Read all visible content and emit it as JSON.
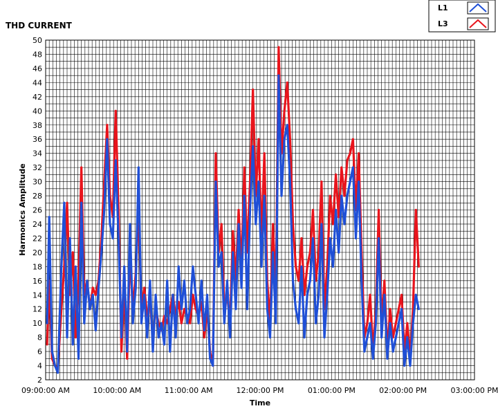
{
  "chart_data": {
    "type": "line",
    "title": "THD CURRENT",
    "xlabel": "Time",
    "ylabel": "Harmonics Amplitude",
    "ylim": [
      2,
      50
    ],
    "y_ticks": [
      2,
      4,
      6,
      8,
      10,
      12,
      14,
      16,
      18,
      20,
      22,
      24,
      26,
      28,
      30,
      32,
      34,
      36,
      38,
      40,
      42,
      44,
      46,
      48,
      50
    ],
    "x_ticks": [
      "09:00:00 AM",
      "10:00:00 AM",
      "11:00:00 AM",
      "12:00:00 PM",
      "01:00:00 PM",
      "02:00:00 PM",
      "03:00:00 PM"
    ],
    "x_range_hours": [
      9,
      15
    ],
    "grid": true,
    "legend": "top-right",
    "colors": {
      "L1": "#1f4fd6",
      "L3": "#e8141c",
      "grid": "#000000"
    },
    "series": [
      {
        "name": "L3",
        "x": [
          9.02,
          9.05,
          9.09,
          9.13,
          9.17,
          9.22,
          9.26,
          9.3,
          9.34,
          9.38,
          9.42,
          9.46,
          9.5,
          9.54,
          9.58,
          9.62,
          9.66,
          9.7,
          9.74,
          9.78,
          9.82,
          9.86,
          9.9,
          9.94,
          9.98,
          10.02,
          10.06,
          10.1,
          10.14,
          10.18,
          10.22,
          10.26,
          10.3,
          10.34,
          10.38,
          10.42,
          10.46,
          10.5,
          10.54,
          10.58,
          10.62,
          10.66,
          10.7,
          10.74,
          10.78,
          10.82,
          10.86,
          10.9,
          10.94,
          10.98,
          11.02,
          11.06,
          11.1,
          11.14,
          11.18,
          11.22,
          11.26,
          11.3,
          11.34,
          11.38,
          11.42,
          11.46,
          11.5,
          11.54,
          11.58,
          11.62,
          11.66,
          11.7,
          11.74,
          11.78,
          11.82,
          11.86,
          11.9,
          11.94,
          11.98,
          12.02,
          12.06,
          12.1,
          12.14,
          12.18,
          12.22,
          12.26,
          12.3,
          12.34,
          12.38,
          12.42,
          12.46,
          12.5,
          12.54,
          12.58,
          12.62,
          12.66,
          12.7,
          12.74,
          12.78,
          12.82,
          12.86,
          12.9,
          12.94,
          12.98,
          13.02,
          13.06,
          13.1,
          13.14,
          13.18,
          13.22,
          13.26,
          13.3,
          13.34,
          13.38,
          13.42,
          13.46,
          13.5,
          13.54,
          13.58,
          13.62,
          13.66,
          13.7,
          13.74,
          13.78,
          13.82,
          13.86,
          13.9,
          13.94,
          13.98,
          14.02,
          14.06,
          14.1,
          14.14,
          14.18,
          14.22
        ],
        "y": [
          7,
          16,
          5,
          4,
          3.5,
          12,
          18,
          27,
          14,
          20,
          8,
          16,
          32,
          14,
          16,
          12,
          15,
          14,
          16,
          22,
          30,
          38,
          28,
          25,
          40,
          26,
          6,
          15,
          5,
          20,
          12,
          17,
          26,
          12,
          15,
          11,
          13,
          8,
          12,
          10,
          9,
          11,
          10,
          12,
          14,
          11,
          13,
          10,
          12,
          11,
          10,
          14,
          12,
          11,
          13,
          8,
          12,
          6,
          4,
          34,
          20,
          24,
          12,
          14,
          10,
          23,
          16,
          26,
          18,
          32,
          20,
          30,
          43,
          28,
          36,
          22,
          34,
          16,
          10,
          24,
          14,
          49,
          34,
          40,
          44,
          36,
          24,
          18,
          16,
          22,
          14,
          18,
          20,
          26,
          16,
          20,
          30,
          12,
          18,
          28,
          24,
          31,
          25,
          32,
          28,
          33,
          34,
          36,
          26,
          34,
          20,
          8,
          10,
          14,
          6,
          12,
          26,
          10,
          16,
          6,
          12,
          8,
          10,
          12,
          14,
          6,
          10,
          5,
          12,
          26,
          18
        ],
        "values": [
          7,
          16,
          5,
          4,
          3.5,
          12,
          18,
          27,
          14,
          20,
          8,
          16,
          32,
          14,
          16,
          12,
          15,
          14,
          16,
          22,
          30,
          38,
          28,
          25,
          40,
          26,
          6,
          15,
          5,
          20,
          12,
          17,
          26,
          12,
          15,
          11,
          13,
          8,
          12,
          10,
          9,
          11,
          10,
          12,
          14,
          11,
          13,
          10,
          12,
          11,
          10,
          14,
          12,
          11,
          13,
          8,
          12,
          6,
          4,
          34,
          20,
          24,
          12,
          14,
          10,
          23,
          16,
          26,
          18,
          32,
          20,
          30,
          43,
          28,
          36,
          22,
          34,
          16,
          10,
          24,
          14,
          49,
          34,
          40,
          44,
          36,
          24,
          18,
          16,
          22,
          14,
          18,
          20,
          26,
          16,
          20,
          30,
          12,
          18,
          28,
          24,
          31,
          25,
          32,
          28,
          33,
          34,
          36,
          26,
          34,
          20,
          8,
          10,
          14,
          6,
          12,
          26,
          10,
          16,
          6,
          12,
          8,
          10,
          12,
          14,
          6,
          10,
          5,
          12,
          26,
          18
        ]
      },
      {
        "name": "L1",
        "x": [
          9.02,
          9.05,
          9.09,
          9.13,
          9.17,
          9.22,
          9.26,
          9.3,
          9.34,
          9.38,
          9.42,
          9.46,
          9.5,
          9.54,
          9.58,
          9.62,
          9.66,
          9.7,
          9.74,
          9.78,
          9.82,
          9.86,
          9.9,
          9.94,
          9.98,
          10.02,
          10.06,
          10.1,
          10.14,
          10.18,
          10.22,
          10.26,
          10.3,
          10.34,
          10.38,
          10.42,
          10.46,
          10.5,
          10.54,
          10.58,
          10.62,
          10.66,
          10.7,
          10.74,
          10.78,
          10.82,
          10.86,
          10.9,
          10.94,
          10.98,
          11.02,
          11.06,
          11.1,
          11.14,
          11.18,
          11.22,
          11.26,
          11.3,
          11.34,
          11.38,
          11.42,
          11.46,
          11.5,
          11.54,
          11.58,
          11.62,
          11.66,
          11.7,
          11.74,
          11.78,
          11.82,
          11.86,
          11.9,
          11.94,
          11.98,
          12.02,
          12.06,
          12.1,
          12.14,
          12.18,
          12.22,
          12.26,
          12.3,
          12.34,
          12.38,
          12.42,
          12.46,
          12.5,
          12.54,
          12.58,
          12.62,
          12.66,
          12.7,
          12.74,
          12.78,
          12.82,
          12.86,
          12.9,
          12.94,
          12.98,
          13.02,
          13.06,
          13.1,
          13.14,
          13.18,
          13.22,
          13.26,
          13.3,
          13.34,
          13.38,
          13.42,
          13.46,
          13.5,
          13.54,
          13.58,
          13.62,
          13.66,
          13.7,
          13.74,
          13.78,
          13.82,
          13.86,
          13.9,
          13.94,
          13.98,
          14.02,
          14.06,
          14.1,
          14.14,
          14.18,
          14.22
        ],
        "y": [
          10,
          25,
          6,
          4,
          3,
          18,
          27,
          8,
          22,
          7,
          18,
          5,
          27,
          10,
          16,
          12,
          14,
          9,
          15,
          20,
          26,
          36,
          24,
          22,
          33,
          22,
          8,
          18,
          6,
          24,
          10,
          15,
          32,
          10,
          14,
          8,
          16,
          6,
          14,
          8,
          10,
          7,
          16,
          6,
          14,
          8,
          18,
          12,
          16,
          10,
          12,
          18,
          14,
          10,
          16,
          9,
          14,
          5,
          4,
          30,
          18,
          20,
          10,
          16,
          8,
          20,
          12,
          24,
          15,
          28,
          12,
          26,
          35,
          24,
          30,
          18,
          28,
          12,
          8,
          20,
          10,
          45,
          28,
          36,
          38,
          30,
          16,
          12,
          10,
          18,
          8,
          14,
          16,
          22,
          10,
          14,
          24,
          8,
          14,
          22,
          18,
          26,
          20,
          28,
          24,
          28,
          30,
          32,
          22,
          30,
          16,
          6,
          8,
          10,
          5,
          10,
          22,
          8,
          14,
          5,
          10,
          6,
          8,
          10,
          12,
          4,
          8,
          4,
          10,
          14,
          12
        ],
        "values": [
          10,
          25,
          6,
          4,
          3,
          18,
          27,
          8,
          22,
          7,
          18,
          5,
          27,
          10,
          16,
          12,
          14,
          9,
          15,
          20,
          26,
          36,
          24,
          22,
          33,
          22,
          8,
          18,
          6,
          24,
          10,
          15,
          32,
          10,
          14,
          8,
          16,
          6,
          14,
          8,
          10,
          7,
          16,
          6,
          14,
          8,
          18,
          12,
          16,
          10,
          12,
          18,
          14,
          10,
          16,
          9,
          14,
          5,
          4,
          30,
          18,
          20,
          10,
          16,
          8,
          20,
          12,
          24,
          15,
          28,
          12,
          26,
          35,
          24,
          30,
          18,
          28,
          12,
          8,
          20,
          10,
          45,
          28,
          36,
          38,
          30,
          16,
          12,
          10,
          18,
          8,
          14,
          16,
          22,
          10,
          14,
          24,
          8,
          14,
          22,
          18,
          26,
          20,
          28,
          24,
          28,
          30,
          32,
          22,
          30,
          16,
          6,
          8,
          10,
          5,
          10,
          22,
          8,
          14,
          5,
          10,
          6,
          8,
          10,
          12,
          4,
          8,
          4,
          10,
          14,
          12
        ]
      }
    ]
  }
}
